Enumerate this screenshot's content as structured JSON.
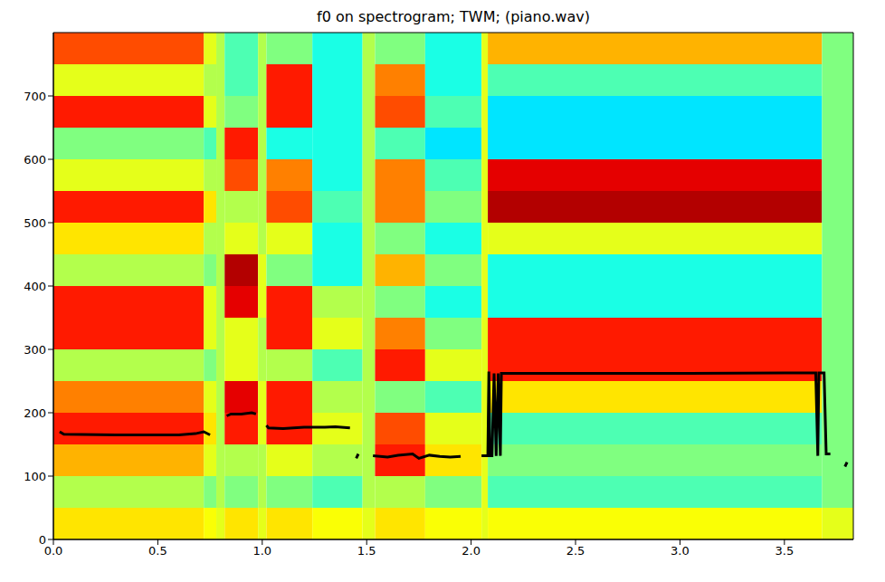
{
  "chart_data": {
    "type": "heatmap",
    "title": "f0 on spectrogram; TWM; (piano.wav)",
    "xlim": [
      0,
      3.83
    ],
    "ylim": [
      0,
      800
    ],
    "xticks": [
      {
        "value": 0,
        "label": "0.0"
      },
      {
        "value": 0.5,
        "label": "0.5"
      },
      {
        "value": 1,
        "label": "1.0"
      },
      {
        "value": 1.5,
        "label": "1.5"
      },
      {
        "value": 2,
        "label": "2.0"
      },
      {
        "value": 2.5,
        "label": "2.5"
      },
      {
        "value": 3,
        "label": "3.0"
      },
      {
        "value": 3.5,
        "label": "3.5"
      }
    ],
    "yticks": [
      0,
      100,
      200,
      300,
      400,
      500,
      600,
      700
    ],
    "heatmap": {
      "x_edges": [
        0,
        0.72,
        0.78,
        0.82,
        0.98,
        1.02,
        1.24,
        1.48,
        1.54,
        1.78,
        2.05,
        2.08,
        3.68,
        3.83
      ],
      "y_edges": [
        0,
        50,
        100,
        150,
        200,
        250,
        300,
        350,
        400,
        450,
        500,
        550,
        600,
        650,
        700,
        750,
        800
      ],
      "clim": [
        0,
        1
      ],
      "cells": [
        [
          0.65,
          0.55,
          0.7,
          0.85,
          0.75,
          0.55,
          0.85,
          0.85,
          0.55,
          0.65,
          0.85,
          0.6,
          0.5,
          0.85,
          0.6,
          0.8
        ],
        [
          0.62,
          0.5,
          0.6,
          0.65,
          0.6,
          0.5,
          0.6,
          0.6,
          0.5,
          0.55,
          0.65,
          0.55,
          0.45,
          0.6,
          0.55,
          0.6
        ],
        [
          0.6,
          0.55,
          0.55,
          0.55,
          0.55,
          0.55,
          0.55,
          0.55,
          0.55,
          0.55,
          0.55,
          0.55,
          0.55,
          0.55,
          0.55,
          0.55
        ],
        [
          0.65,
          0.5,
          0.55,
          0.85,
          0.9,
          0.6,
          0.6,
          0.9,
          0.95,
          0.6,
          0.55,
          0.8,
          0.85,
          0.5,
          0.45,
          0.45
        ],
        [
          0.6,
          0.55,
          0.55,
          0.6,
          0.6,
          0.55,
          0.55,
          0.6,
          0.6,
          0.55,
          0.55,
          0.55,
          0.55,
          0.55,
          0.55,
          0.55
        ],
        [
          0.65,
          0.5,
          0.6,
          0.85,
          0.85,
          0.55,
          0.85,
          0.85,
          0.5,
          0.6,
          0.8,
          0.75,
          0.4,
          0.85,
          0.85,
          0.5
        ],
        [
          0.62,
          0.45,
          0.55,
          0.6,
          0.55,
          0.45,
          0.6,
          0.55,
          0.4,
          0.4,
          0.45,
          0.4,
          0.4,
          0.4,
          0.4,
          0.4
        ],
        [
          0.6,
          0.55,
          0.55,
          0.55,
          0.55,
          0.55,
          0.55,
          0.55,
          0.55,
          0.55,
          0.55,
          0.55,
          0.55,
          0.55,
          0.55,
          0.55
        ],
        [
          0.65,
          0.55,
          0.85,
          0.8,
          0.5,
          0.85,
          0.75,
          0.5,
          0.7,
          0.5,
          0.75,
          0.75,
          0.45,
          0.8,
          0.75,
          0.5
        ],
        [
          0.62,
          0.5,
          0.65,
          0.6,
          0.45,
          0.6,
          0.5,
          0.4,
          0.5,
          0.4,
          0.5,
          0.45,
          0.35,
          0.45,
          0.4,
          0.4
        ],
        [
          0.6,
          0.6,
          0.6,
          0.6,
          0.6,
          0.6,
          0.6,
          0.6,
          0.6,
          0.6,
          0.6,
          0.6,
          0.6,
          0.6,
          0.6,
          0.6
        ],
        [
          0.62,
          0.45,
          0.5,
          0.45,
          0.65,
          0.85,
          0.85,
          0.4,
          0.4,
          0.6,
          0.95,
          0.9,
          0.35,
          0.35,
          0.45,
          0.7
        ],
        [
          0.6,
          0.5,
          0.5,
          0.5,
          0.5,
          0.5,
          0.5,
          0.5,
          0.5,
          0.5,
          0.5,
          0.5,
          0.5,
          0.5,
          0.5,
          0.5
        ]
      ]
    },
    "series": [
      {
        "type": "line",
        "color": "#000000",
        "x": [
          0.03,
          0.05,
          0.3,
          0.6,
          0.68,
          0.72,
          0.75,
          0.76,
          0.83,
          0.85,
          0.9,
          0.95,
          0.97,
          0.99,
          1.02,
          1.03,
          1.1,
          1.2,
          1.3,
          1.35,
          1.42,
          1.44,
          1.45,
          1.46,
          1.5,
          1.53,
          1.6,
          1.65,
          1.72,
          1.75,
          1.8,
          1.85,
          1.9,
          1.95,
          2.0,
          2.05,
          2.08,
          2.085,
          2.09,
          2.1,
          2.11,
          2.12,
          2.13,
          2.14,
          2.145,
          2.2,
          2.5,
          3.0,
          3.5,
          3.65,
          3.66,
          3.665,
          3.69,
          3.7,
          3.72,
          3.75,
          3.79,
          3.8
        ],
        "values": [
          170,
          166,
          165,
          165,
          167,
          170,
          165,
          null,
          195,
          198,
          198,
          200,
          198,
          null,
          180,
          176,
          175,
          177,
          177,
          178,
          176,
          null,
          128,
          135,
          null,
          132,
          130,
          133,
          135,
          128,
          133,
          131,
          130,
          131,
          null,
          132,
          132,
          265,
          132,
          132,
          262,
          132,
          262,
          132,
          262,
          262,
          262,
          262,
          263,
          263,
          132,
          263,
          263,
          135,
          135,
          null,
          115,
          122
        ]
      }
    ]
  }
}
